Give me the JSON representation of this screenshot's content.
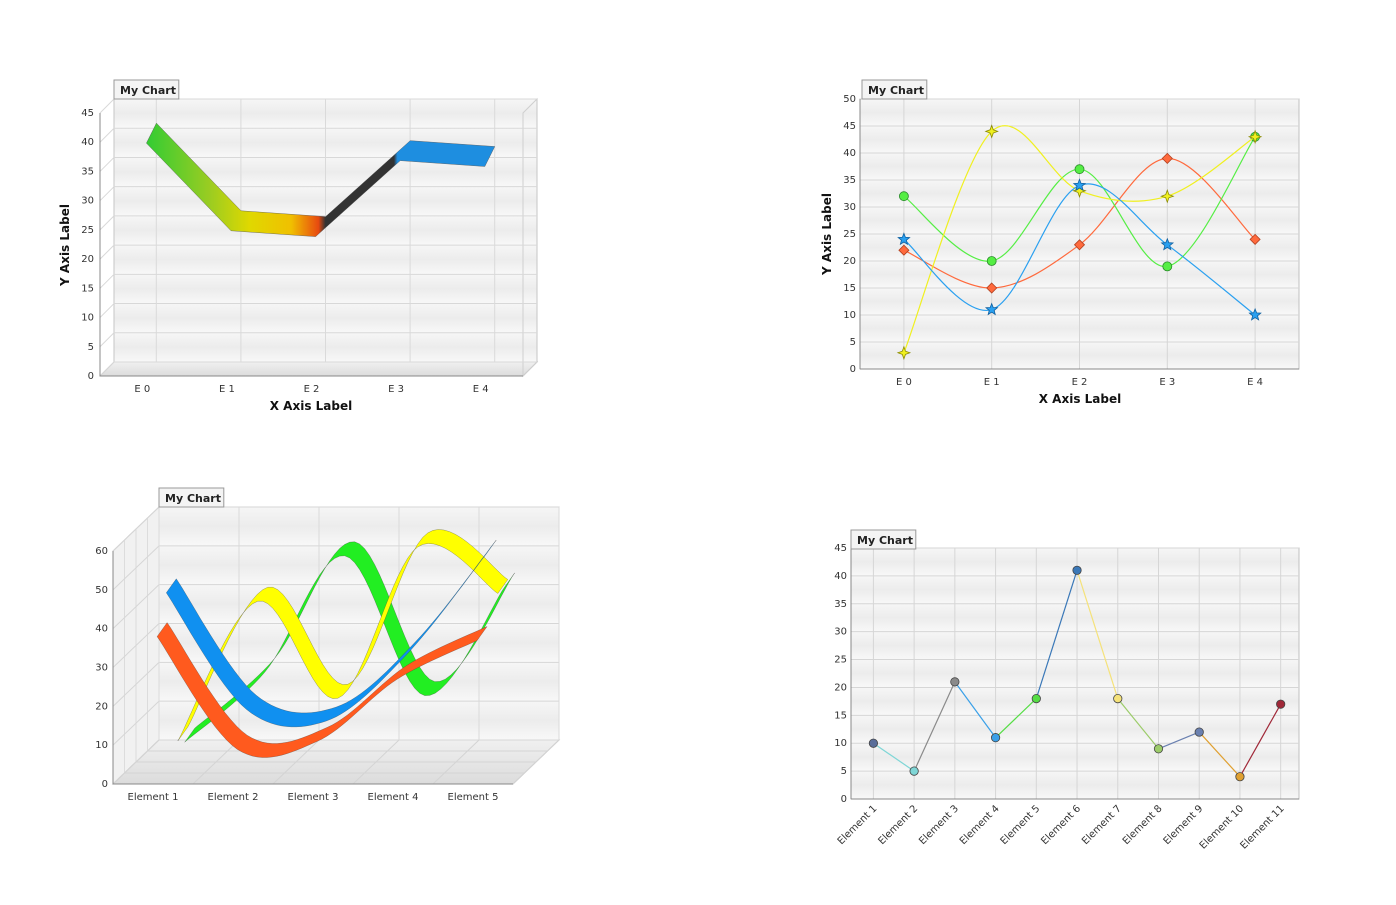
{
  "chart_data": [
    {
      "type": "line",
      "title": "My Chart",
      "xlabel": "X Axis Label",
      "ylabel": "Y Axis Label",
      "categories": [
        "E 0",
        "E 1",
        "E 2",
        "E 3",
        "E 4"
      ],
      "values": [
        40,
        25,
        24,
        37,
        36
      ],
      "ylim": [
        0,
        45
      ],
      "ytick_step": 5,
      "style": "3d-ribbon",
      "colors": [
        "#33cc33",
        "#e8e000",
        "#e43a14",
        "#1e8ee0"
      ],
      "grid": true
    },
    {
      "type": "line",
      "title": "My Chart",
      "xlabel": "X Axis Label",
      "ylabel": "Y Axis Label",
      "categories": [
        "E 0",
        "E 1",
        "E 2",
        "E 3",
        "E 4"
      ],
      "ylim": [
        0,
        50
      ],
      "ytick_step": 5,
      "grid": true,
      "series": [
        {
          "values": [
            22,
            15,
            23,
            39,
            24
          ],
          "color": "#ff6a3d",
          "marker": "diamond"
        },
        {
          "values": [
            32,
            20,
            37,
            19,
            43
          ],
          "color": "#55ee44",
          "marker": "circle"
        },
        {
          "values": [
            3,
            44,
            33,
            32,
            43
          ],
          "color": "#f0f020",
          "marker": "star4"
        },
        {
          "values": [
            24,
            11,
            34,
            23,
            10
          ],
          "color": "#2aa0f0",
          "marker": "star"
        }
      ]
    },
    {
      "type": "line",
      "title": "My Chart",
      "categories": [
        "Element 1",
        "Element 2",
        "Element 3",
        "Element 4",
        "Element 5"
      ],
      "ylim": [
        0,
        60
      ],
      "ytick_step": 10,
      "style": "3d-ribbon",
      "grid": true,
      "series": [
        {
          "values": [
            34,
            5,
            7,
            23,
            33
          ],
          "color": "#ff5a1e"
        },
        {
          "values": [
            43,
            13,
            10,
            27,
            53
          ],
          "color": "#1090f0"
        },
        {
          "values": [
            2,
            38,
            13,
            52,
            40
          ],
          "color": "#ffff00"
        },
        {
          "values": [
            0,
            18,
            48,
            12,
            40
          ],
          "color": "#22ee22"
        }
      ]
    },
    {
      "type": "line",
      "title": "My Chart",
      "categories": [
        "Element 1",
        "Element 2",
        "Element 3",
        "Element 4",
        "Element 5",
        "Element 6",
        "Element 7",
        "Element 8",
        "Element 9",
        "Element 10",
        "Element 11"
      ],
      "values": [
        10,
        5,
        21,
        11,
        18,
        41,
        18,
        9,
        12,
        4,
        17
      ],
      "ylim": [
        0,
        45
      ],
      "ytick_step": 5,
      "grid": true,
      "point_colors": [
        "#5a6e9a",
        "#7fd6d6",
        "#8a8a8a",
        "#3aa0e8",
        "#55dd44",
        "#3a78b8",
        "#f5e27a",
        "#9ccc6a",
        "#6a80b0",
        "#e0a030",
        "#a02838"
      ]
    }
  ]
}
